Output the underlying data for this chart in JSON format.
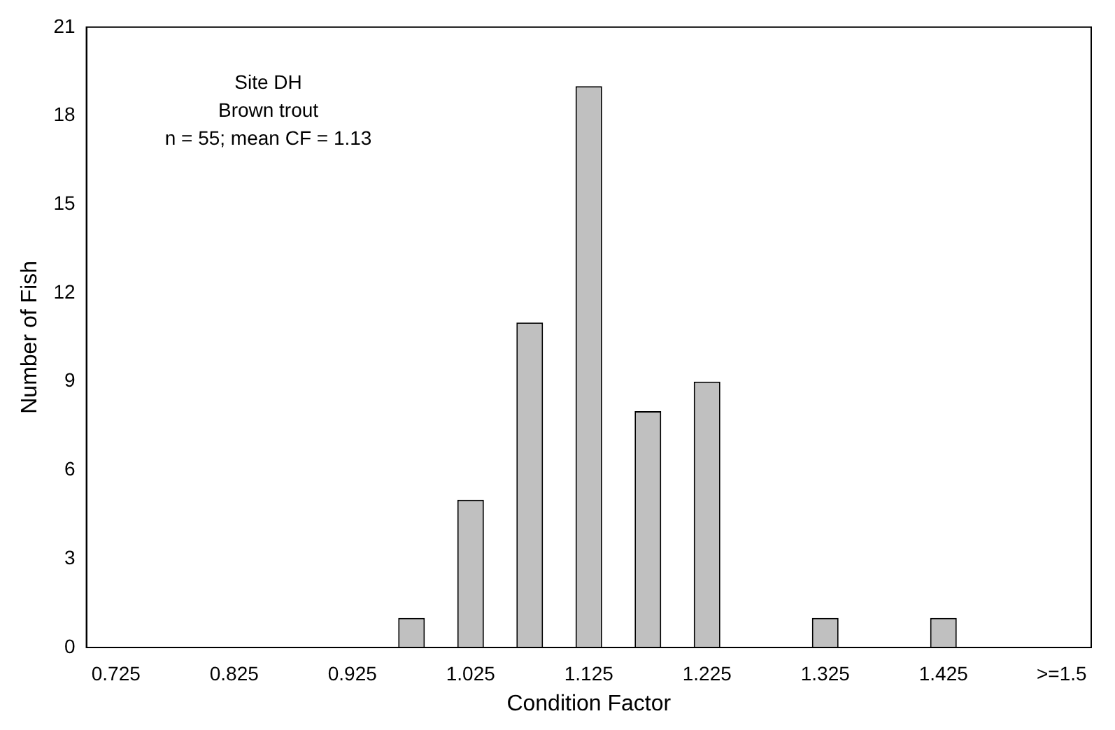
{
  "chart_data": {
    "type": "bar",
    "xlabel": "Condition Factor",
    "ylabel": "Number of Fish",
    "annotations": [
      "Site DH",
      "Brown trout",
      "n = 55; mean CF = 1.13"
    ],
    "categories": [
      "0.725",
      null,
      "0.825",
      null,
      "0.925",
      null,
      "1.025",
      null,
      "1.125",
      null,
      "1.225",
      null,
      "1.325",
      null,
      "1.425",
      null,
      ">=1.5"
    ],
    "values": [
      0,
      0,
      0,
      0,
      0,
      1,
      5,
      11,
      19,
      8,
      9,
      0,
      1,
      0,
      1,
      0,
      0
    ],
    "color": "#c0c0c0",
    "ylim": [
      0,
      21
    ],
    "yticks": [
      0,
      3,
      6,
      9,
      12,
      15,
      18,
      21
    ],
    "grid": false,
    "legend": false
  }
}
